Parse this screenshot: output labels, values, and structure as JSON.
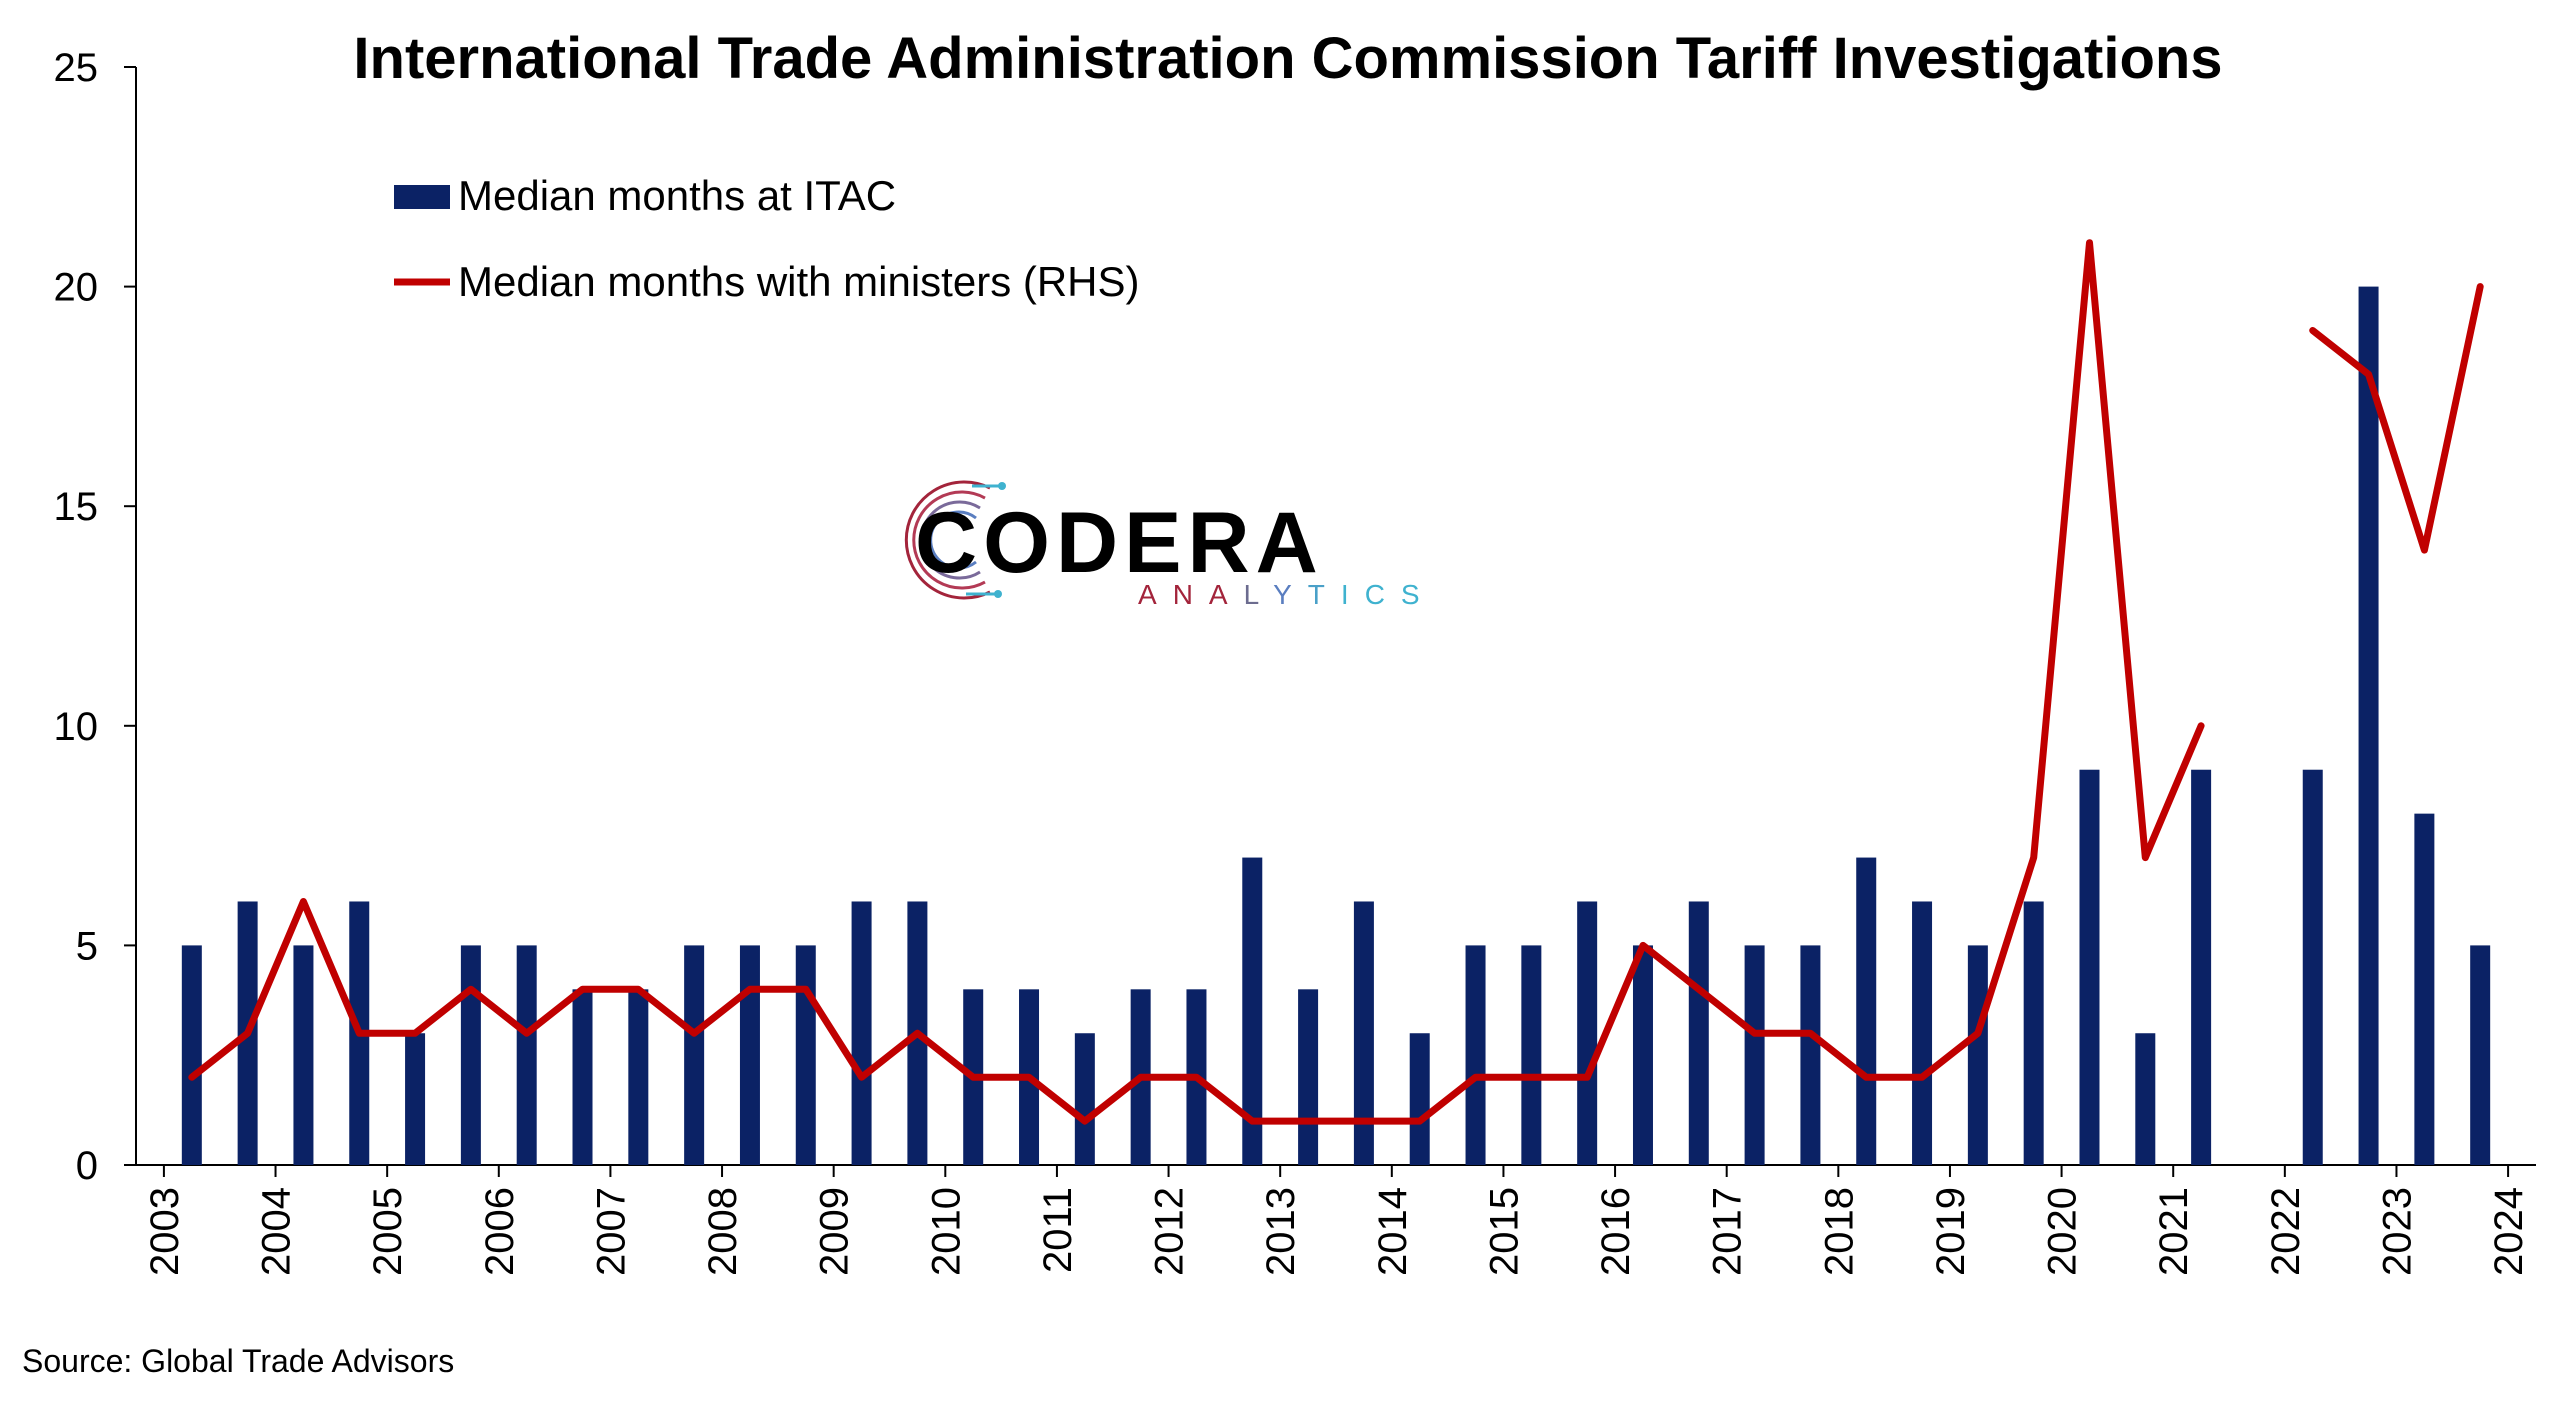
{
  "chart_data": {
    "type": "bar",
    "title": "International Trade Administration Commission Tariff Investigations",
    "source": "Source: Global Trade Advisors",
    "ylim": [
      0,
      25
    ],
    "yticks": [
      "0",
      "5",
      "10",
      "15",
      "20",
      "25"
    ],
    "xticks": [
      "2003",
      "2004",
      "2005",
      "2006",
      "2007",
      "2008",
      "2009",
      "2010",
      "2011",
      "2012",
      "2013",
      "2014",
      "2015",
      "2016",
      "2017",
      "2018",
      "2019",
      "2020",
      "2021",
      "2022",
      "2023",
      "2024"
    ],
    "legend_position": "top-left",
    "grid": false,
    "periods": [
      "2003 H2",
      "2004 H1",
      "2004 H2",
      "2005 H1",
      "2005 H2",
      "2006 H1",
      "2006 H2",
      "2007 H1",
      "2007 H2",
      "2008 H1",
      "2008 H2",
      "2009 H1",
      "2009 H2",
      "2010 H1",
      "2010 H2",
      "2011 H1",
      "2011 H2",
      "2012 H1",
      "2012 H2",
      "2013 H1",
      "2013 H2",
      "2014 H1",
      "2014 H2",
      "2015 H1",
      "2015 H2",
      "2016 H1",
      "2016 H2",
      "2017 H1",
      "2017 H2",
      "2018 H1",
      "2018 H2",
      "2019 H1",
      "2019 H2",
      "2020 H1",
      "2020 H2",
      "2021 H1",
      "2021 H2",
      "2022 H1",
      "2022 H2",
      "2023 H1",
      "2023 H2",
      "2024 H1"
    ],
    "series": [
      {
        "name": "Median months at ITAC",
        "kind": "bar",
        "color": "#0b2265",
        "values": [
          5,
          6,
          5,
          6,
          3,
          5,
          5,
          4,
          4,
          5,
          5,
          5,
          6,
          6,
          4,
          4,
          3,
          4,
          4,
          7,
          4,
          6,
          3,
          5,
          5,
          6,
          5,
          6,
          5,
          5,
          7,
          6,
          5,
          6,
          9,
          3,
          9,
          null,
          9,
          20,
          8,
          5
        ]
      },
      {
        "name": "Median months with ministers (RHS)",
        "kind": "line",
        "color": "#c00000",
        "values": [
          2,
          3,
          6,
          3,
          3,
          4,
          3,
          4,
          4,
          3,
          4,
          4,
          2,
          3,
          2,
          2,
          1,
          2,
          2,
          1,
          1,
          1,
          1,
          2,
          2,
          2,
          5,
          4,
          3,
          3,
          2,
          2,
          3,
          7,
          21,
          7,
          10,
          null,
          19,
          18,
          14,
          20
        ]
      }
    ]
  },
  "logo": {
    "main": "CODERA",
    "sub": "ANALYTICS",
    "sub_colors": [
      "#a3243b",
      "#a3243b",
      "#a3243b",
      "#6c6c8f",
      "#5a7ec0",
      "#4aa0c8",
      "#3fb2cf",
      "#3fb2cf",
      "#3fb2cf"
    ]
  }
}
